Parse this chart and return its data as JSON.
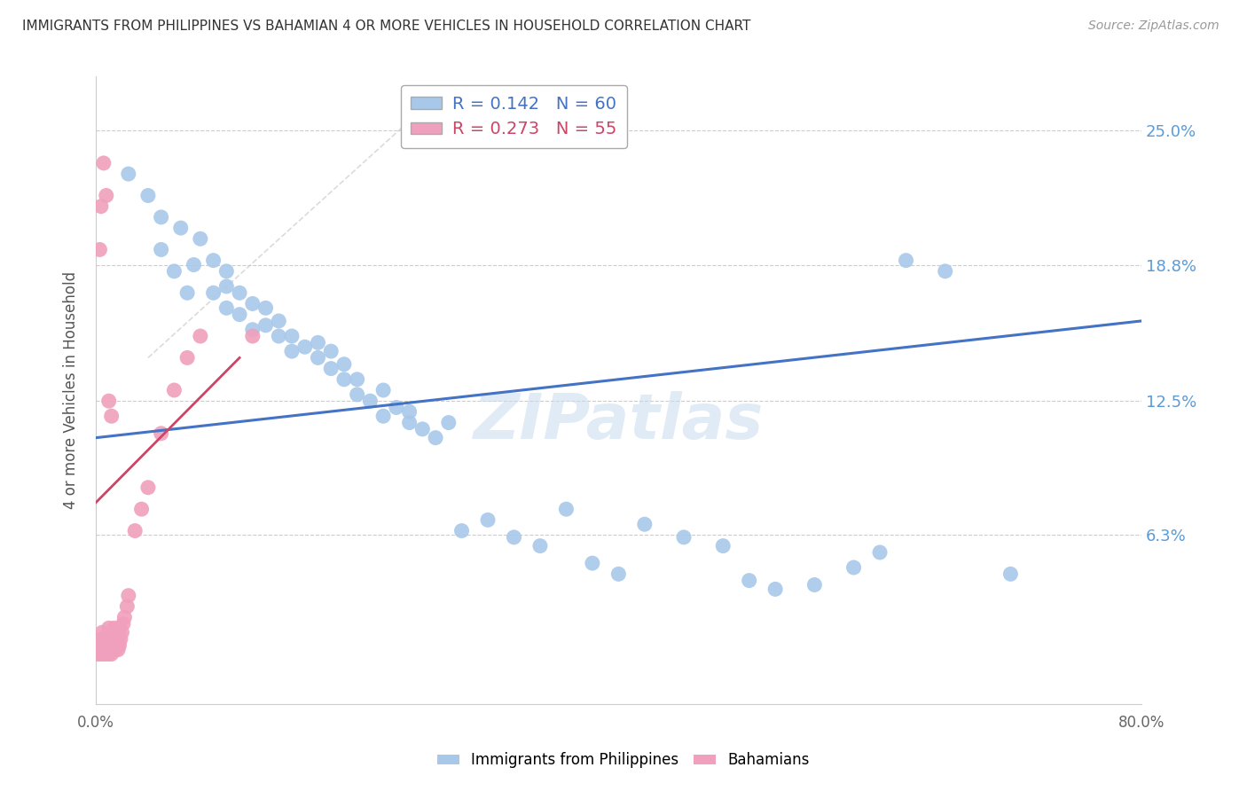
{
  "title": "IMMIGRANTS FROM PHILIPPINES VS BAHAMIAN 4 OR MORE VEHICLES IN HOUSEHOLD CORRELATION CHART",
  "source": "Source: ZipAtlas.com",
  "ylabel": "4 or more Vehicles in Household",
  "yticks": [
    0.0,
    0.063,
    0.125,
    0.188,
    0.25
  ],
  "ytick_labels": [
    "",
    "6.3%",
    "12.5%",
    "18.8%",
    "25.0%"
  ],
  "xtick_left": "0.0%",
  "xtick_right": "80.0%",
  "xmin": 0.0,
  "xmax": 0.8,
  "ymin": -0.015,
  "ymax": 0.275,
  "blue_R": 0.142,
  "blue_N": 60,
  "pink_R": 0.273,
  "pink_N": 55,
  "blue_color": "#A8C8EA",
  "pink_color": "#F0A0BC",
  "blue_line_color": "#4472C4",
  "pink_line_color": "#CC4466",
  "legend_label_blue": "Immigrants from Philippines",
  "legend_label_pink": "Bahamians",
  "background_color": "#FFFFFF",
  "watermark": "ZIPatlas",
  "blue_line_x0": 0.0,
  "blue_line_y0": 0.108,
  "blue_line_x1": 0.8,
  "blue_line_y1": 0.162,
  "pink_line_x0": 0.0,
  "pink_line_y0": 0.078,
  "pink_line_x1": 0.11,
  "pink_line_y1": 0.145,
  "blue_x": [
    0.025,
    0.04,
    0.05,
    0.05,
    0.06,
    0.065,
    0.07,
    0.075,
    0.08,
    0.09,
    0.09,
    0.1,
    0.1,
    0.1,
    0.11,
    0.11,
    0.12,
    0.12,
    0.13,
    0.13,
    0.14,
    0.14,
    0.15,
    0.15,
    0.16,
    0.17,
    0.17,
    0.18,
    0.18,
    0.19,
    0.19,
    0.2,
    0.2,
    0.21,
    0.22,
    0.22,
    0.23,
    0.24,
    0.24,
    0.25,
    0.26,
    0.27,
    0.28,
    0.3,
    0.32,
    0.34,
    0.36,
    0.38,
    0.4,
    0.42,
    0.45,
    0.48,
    0.5,
    0.52,
    0.55,
    0.58,
    0.6,
    0.62,
    0.65,
    0.7
  ],
  "blue_y": [
    0.23,
    0.22,
    0.195,
    0.21,
    0.185,
    0.205,
    0.175,
    0.188,
    0.2,
    0.19,
    0.175,
    0.185,
    0.168,
    0.178,
    0.165,
    0.175,
    0.158,
    0.17,
    0.16,
    0.168,
    0.155,
    0.162,
    0.148,
    0.155,
    0.15,
    0.145,
    0.152,
    0.14,
    0.148,
    0.135,
    0.142,
    0.128,
    0.135,
    0.125,
    0.13,
    0.118,
    0.122,
    0.115,
    0.12,
    0.112,
    0.108,
    0.115,
    0.065,
    0.07,
    0.062,
    0.058,
    0.075,
    0.05,
    0.045,
    0.068,
    0.062,
    0.058,
    0.042,
    0.038,
    0.04,
    0.048,
    0.055,
    0.19,
    0.185,
    0.045
  ],
  "pink_x": [
    0.002,
    0.003,
    0.003,
    0.004,
    0.004,
    0.005,
    0.005,
    0.005,
    0.006,
    0.006,
    0.007,
    0.007,
    0.008,
    0.008,
    0.009,
    0.009,
    0.01,
    0.01,
    0.01,
    0.011,
    0.011,
    0.012,
    0.012,
    0.013,
    0.013,
    0.014,
    0.014,
    0.015,
    0.015,
    0.016,
    0.016,
    0.017,
    0.017,
    0.018,
    0.018,
    0.019,
    0.02,
    0.021,
    0.022,
    0.024,
    0.025,
    0.03,
    0.035,
    0.04,
    0.05,
    0.06,
    0.07,
    0.08,
    0.01,
    0.012,
    0.008,
    0.006,
    0.004,
    0.003,
    0.12
  ],
  "pink_y": [
    0.008,
    0.01,
    0.012,
    0.008,
    0.015,
    0.01,
    0.012,
    0.018,
    0.008,
    0.015,
    0.01,
    0.012,
    0.008,
    0.015,
    0.01,
    0.012,
    0.008,
    0.015,
    0.02,
    0.01,
    0.012,
    0.008,
    0.015,
    0.01,
    0.018,
    0.012,
    0.02,
    0.01,
    0.015,
    0.012,
    0.018,
    0.01,
    0.015,
    0.012,
    0.02,
    0.015,
    0.018,
    0.022,
    0.025,
    0.03,
    0.035,
    0.065,
    0.075,
    0.085,
    0.11,
    0.13,
    0.145,
    0.155,
    0.125,
    0.118,
    0.22,
    0.235,
    0.215,
    0.195,
    0.155
  ]
}
